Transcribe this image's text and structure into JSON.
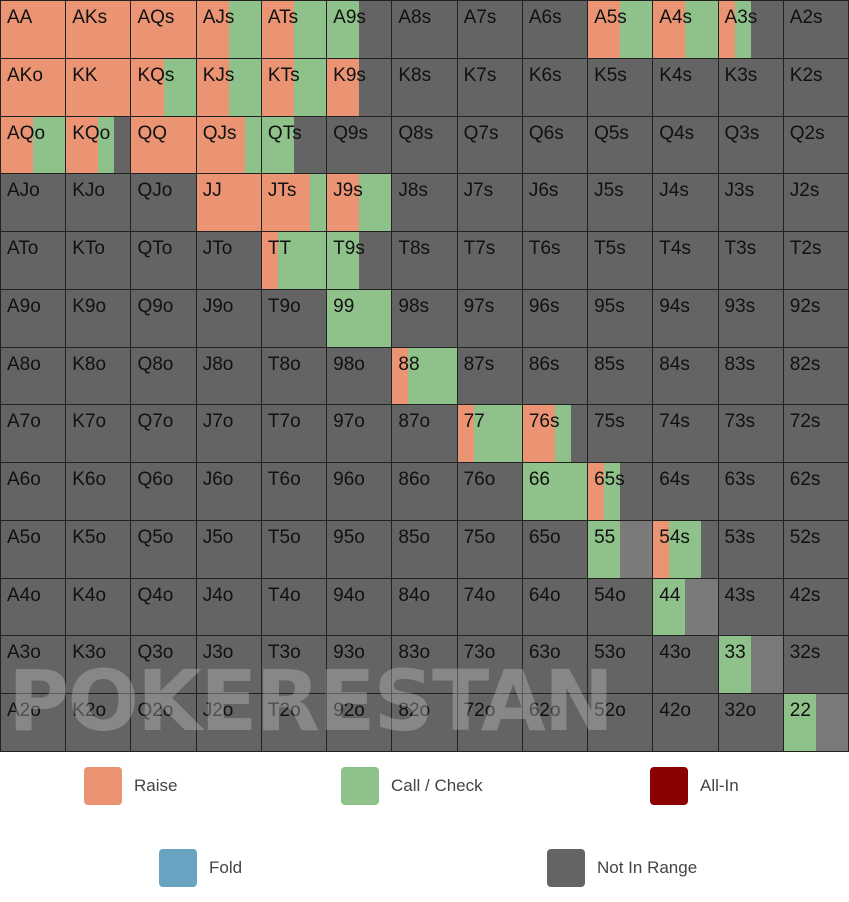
{
  "grid": [
    [
      "AA",
      "AKs",
      "AQs",
      "AJs",
      "ATs",
      "A9s",
      "A8s",
      "A7s",
      "A6s",
      "A5s",
      "A4s",
      "A3s",
      "A2s"
    ],
    [
      "AKo",
      "KK",
      "KQs",
      "KJs",
      "KTs",
      "K9s",
      "K8s",
      "K7s",
      "K6s",
      "K5s",
      "K4s",
      "K3s",
      "K2s"
    ],
    [
      "AQo",
      "KQo",
      "QQ",
      "QJs",
      "QTs",
      "Q9s",
      "Q8s",
      "Q7s",
      "Q6s",
      "Q5s",
      "Q4s",
      "Q3s",
      "Q2s"
    ],
    [
      "AJo",
      "KJo",
      "QJo",
      "JJ",
      "JTs",
      "J9s",
      "J8s",
      "J7s",
      "J6s",
      "J5s",
      "J4s",
      "J3s",
      "J2s"
    ],
    [
      "ATo",
      "KTo",
      "QTo",
      "JTo",
      "TT",
      "T9s",
      "T8s",
      "T7s",
      "T6s",
      "T5s",
      "T4s",
      "T3s",
      "T2s"
    ],
    [
      "A9o",
      "K9o",
      "Q9o",
      "J9o",
      "T9o",
      "99",
      "98s",
      "97s",
      "96s",
      "95s",
      "94s",
      "93s",
      "92s"
    ],
    [
      "A8o",
      "K8o",
      "Q8o",
      "J8o",
      "T8o",
      "98o",
      "88",
      "87s",
      "86s",
      "85s",
      "84s",
      "83s",
      "82s"
    ],
    [
      "A7o",
      "K7o",
      "Q7o",
      "J7o",
      "T7o",
      "97o",
      "87o",
      "77",
      "76s",
      "75s",
      "74s",
      "73s",
      "72s"
    ],
    [
      "A6o",
      "K6o",
      "Q6o",
      "J6o",
      "T6o",
      "96o",
      "86o",
      "76o",
      "66",
      "65s",
      "64s",
      "63s",
      "62s"
    ],
    [
      "A5o",
      "K5o",
      "Q5o",
      "J5o",
      "T5o",
      "95o",
      "85o",
      "75o",
      "65o",
      "55",
      "54s",
      "53s",
      "52s"
    ],
    [
      "A4o",
      "K4o",
      "Q4o",
      "J4o",
      "T4o",
      "94o",
      "84o",
      "74o",
      "64o",
      "54o",
      "44",
      "43s",
      "42s"
    ],
    [
      "A3o",
      "K3o",
      "Q3o",
      "J3o",
      "T3o",
      "93o",
      "83o",
      "73o",
      "63o",
      "53o",
      "43o",
      "33",
      "32s"
    ],
    [
      "A2o",
      "K2o",
      "Q2o",
      "J2o",
      "T2o",
      "92o",
      "82o",
      "72o",
      "62o",
      "52o",
      "42o",
      "32o",
      "22"
    ]
  ],
  "actions": {
    "AA": {
      "raise": 1,
      "call": 0
    },
    "AKs": {
      "raise": 1,
      "call": 0
    },
    "AQs": {
      "raise": 1,
      "call": 0
    },
    "AJs": {
      "raise": 0.5,
      "call": 0.5
    },
    "ATs": {
      "raise": 0.5,
      "call": 0.5
    },
    "A9s": {
      "raise": 0,
      "call": 0.5
    },
    "A5s": {
      "raise": 0.5,
      "call": 0.5
    },
    "A4s": {
      "raise": 0.5,
      "call": 0.5
    },
    "A3s": {
      "raise": 0.25,
      "call": 0.25
    },
    "AKo": {
      "raise": 1,
      "call": 0
    },
    "KK": {
      "raise": 1,
      "call": 0
    },
    "KQs": {
      "raise": 0.5,
      "call": 0.5
    },
    "KJs": {
      "raise": 0.5,
      "call": 0.5
    },
    "KTs": {
      "raise": 0.5,
      "call": 0.5
    },
    "K9s": {
      "raise": 0.5,
      "call": 0
    },
    "AQo": {
      "raise": 0.5,
      "call": 0.5
    },
    "KQo": {
      "raise": 0.5,
      "call": 0.25
    },
    "QQ": {
      "raise": 1,
      "call": 0
    },
    "QJs": {
      "raise": 0.75,
      "call": 0.25
    },
    "QTs": {
      "raise": 0,
      "call": 0.5
    },
    "JJ": {
      "raise": 1,
      "call": 0
    },
    "JTs": {
      "raise": 0.75,
      "call": 0.25
    },
    "J9s": {
      "raise": 0.5,
      "call": 0.5
    },
    "TT": {
      "raise": 0.25,
      "call": 0.75
    },
    "T9s": {
      "raise": 0,
      "call": 0.5
    },
    "99": {
      "raise": 0,
      "call": 1
    },
    "88": {
      "raise": 0.25,
      "call": 0.75
    },
    "77": {
      "raise": 0.25,
      "call": 0.75
    },
    "76s": {
      "raise": 0.5,
      "call": 0.25
    },
    "66": {
      "raise": 0,
      "call": 1
    },
    "65s": {
      "raise": 0.25,
      "call": 0.25
    },
    "55": {
      "raise": 0,
      "call": 0.5,
      "unlisted": 0.5
    },
    "54s": {
      "raise": 0.25,
      "call": 0.5
    },
    "44": {
      "raise": 0,
      "call": 0.5,
      "unlisted": 0.5
    },
    "33": {
      "raise": 0,
      "call": 0.5,
      "unlisted": 0.5
    },
    "22": {
      "raise": 0,
      "call": 0.5,
      "unlisted": 0.5
    }
  },
  "colors": {
    "raise": "#ea9474",
    "call": "#8fc18a",
    "allin": "#8b0000",
    "fold": "#6aa3c2",
    "not_in_range": "#646464",
    "unlisted": "#7a7a7a"
  },
  "watermark": "POKERESTAN",
  "legend": {
    "raise": "Raise",
    "call": "Call / Check",
    "allin": "All-In",
    "fold": "Fold",
    "not_in_range": "Not In Range"
  }
}
